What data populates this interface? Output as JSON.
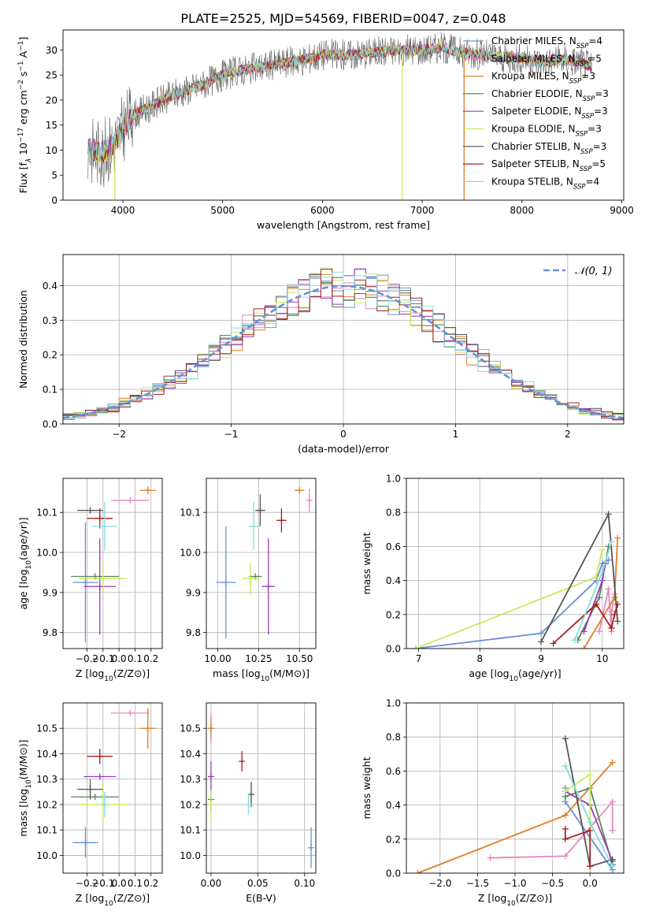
{
  "figure_title": "PLATE=2525, MJD=54569, FIBERID=0047, z=0.048",
  "colors": {
    "Chabrier MILES": "#6a8fd8",
    "Salpeter MILES": "#e388c0",
    "Kroupa MILES": "#e07f28",
    "Chabrier ELODIE": "#57845a",
    "Salpeter ELODIE": "#9a3ab4",
    "Kroupa ELODIE": "#c6ec58",
    "Chabrier STELIB": "#555555",
    "Salpeter STELIB": "#a81f1f",
    "Kroupa STELIB": "#86dcde",
    "normal_curve": "#6a8fd8"
  },
  "chart_data": [
    {
      "id": "spectrum",
      "type": "line",
      "title": "PLATE=2525, MJD=54569, FIBERID=0047, z=0.048",
      "xlabel": "wavelength [Angstrom, rest frame]",
      "ylabel": "Flux [f_λ 10^-17 erg cm^-2 s^-1 A^-1]",
      "xlim": [
        3400,
        9020
      ],
      "ylim": [
        0,
        34
      ],
      "xticks": [
        4000,
        5000,
        6000,
        7000,
        8000,
        9000
      ],
      "yticks": [
        0,
        5,
        10,
        15,
        20,
        25,
        30
      ],
      "grid": false,
      "legend_location": "top-right",
      "legend": [
        {
          "name": "Chabrier MILES",
          "nssp": "4"
        },
        {
          "name": "Salpeter MILES",
          "nssp": "5"
        },
        {
          "name": "Kroupa MILES",
          "nssp": "3"
        },
        {
          "name": "Chabrier ELODIE",
          "nssp": "3"
        },
        {
          "name": "Salpeter ELODIE",
          "nssp": "3"
        },
        {
          "name": "Kroupa ELODIE",
          "nssp": "3"
        },
        {
          "name": "Chabrier STELIB",
          "nssp": "3"
        },
        {
          "name": "Salpeter STELIB",
          "nssp": "5"
        },
        {
          "name": "Kroupa STELIB",
          "nssp": "4"
        }
      ],
      "continuum": {
        "x": [
          3650,
          3800,
          3900,
          4000,
          4100,
          4300,
          4500,
          4800,
          5000,
          5200,
          5500,
          5800,
          6000,
          6300,
          6500,
          6800,
          7000,
          7200,
          7400,
          7600,
          7800,
          8000,
          8200,
          8400,
          8600,
          8700
        ],
        "y": [
          10,
          9.5,
          11,
          14,
          17,
          19,
          21,
          23,
          25,
          26,
          27,
          28,
          29,
          29,
          29.5,
          30,
          30,
          30.5,
          29.5,
          29,
          28.5,
          28.5,
          27.5,
          28,
          27.5,
          26.5
        ]
      },
      "vertical_drops": [
        {
          "series": "Kroupa ELODIE",
          "x": 3920,
          "from": 11
        },
        {
          "series": "Kroupa ELODIE",
          "x": 6800,
          "from": 29
        },
        {
          "series": "Kroupa MILES",
          "x": 7420,
          "from": 28
        }
      ]
    },
    {
      "id": "residuals",
      "type": "histogram",
      "xlabel": "(data-model)/error",
      "ylabel": "Normed distribution",
      "xlim": [
        -2.5,
        2.5
      ],
      "ylim": [
        0,
        0.49
      ],
      "xticks": [
        -2,
        -1,
        0,
        1,
        2
      ],
      "yticks": [
        0.0,
        0.1,
        0.2,
        0.3,
        0.4
      ],
      "grid": true,
      "bin_width": 0.1,
      "legend_location": "top-right",
      "legend": [
        "𝒩(0, 1)"
      ],
      "series_jitter_seeds": [
        3,
        7,
        11,
        13,
        17,
        19,
        23,
        29,
        31
      ],
      "normal_mean": 0,
      "normal_std": 1
    },
    {
      "id": "age_vs_Z",
      "type": "errorbar",
      "xlabel": "Z [log10(Z/Z⊙)]",
      "ylabel": "age [log10(age/yr)]",
      "xlim": [
        -0.35,
        0.27
      ],
      "ylim": [
        9.76,
        10.185
      ],
      "xticks": [
        -0.2,
        -0.1,
        0.0,
        0.1,
        0.2
      ],
      "yticks": [
        9.8,
        9.9,
        10.0,
        10.1
      ],
      "grid": true,
      "points": [
        {
          "series": "Chabrier MILES",
          "x": -0.21,
          "xerr": 0.08,
          "y": 9.925,
          "yerr": 0.15
        },
        {
          "series": "Salpeter MILES",
          "x": 0.07,
          "xerr": 0.12,
          "y": 10.13,
          "yerr": 0.0
        },
        {
          "series": "Kroupa MILES",
          "x": 0.18,
          "xerr": 0.05,
          "y": 10.155,
          "yerr": 0.01
        },
        {
          "series": "Chabrier ELODIE",
          "x": -0.15,
          "xerr": 0.15,
          "y": 9.94,
          "yerr": 0.0
        },
        {
          "series": "Salpeter ELODIE",
          "x": -0.12,
          "xerr": 0.1,
          "y": 9.915,
          "yerr": 0.12
        },
        {
          "series": "Kroupa ELODIE",
          "x": -0.1,
          "xerr": 0.15,
          "y": 9.935,
          "yerr": 0.04
        },
        {
          "series": "Chabrier STELIB",
          "x": -0.18,
          "xerr": 0.08,
          "y": 10.105,
          "yerr": 0.0
        },
        {
          "series": "Salpeter STELIB",
          "x": -0.12,
          "xerr": 0.08,
          "y": 10.085,
          "yerr": 0.025
        },
        {
          "series": "Kroupa STELIB",
          "x": -0.09,
          "xerr": 0.08,
          "y": 10.065,
          "yerr": 0.06
        }
      ]
    },
    {
      "id": "age_vs_mass",
      "type": "errorbar",
      "xlabel": "mass [log10(M/M⊙)]",
      "ylabel": "",
      "xlim": [
        9.93,
        10.6
      ],
      "ylim": [
        9.76,
        10.185
      ],
      "xticks": [
        10.0,
        10.25,
        10.5
      ],
      "xticklabels": [
        "10.00",
        "10.25",
        "10.50"
      ],
      "yticks": [
        9.8,
        9.9,
        10.0,
        10.1
      ],
      "grid": true,
      "points": [
        {
          "series": "Chabrier MILES",
          "x": 10.05,
          "xerr": 0.06,
          "y": 9.925,
          "yerr": 0.14
        },
        {
          "series": "Salpeter MILES",
          "x": 10.56,
          "xerr": 0.0,
          "y": 10.13,
          "yerr": 0.03
        },
        {
          "series": "Kroupa MILES",
          "x": 10.5,
          "xerr": 0.03,
          "y": 10.155,
          "yerr": 0.0
        },
        {
          "series": "Chabrier ELODIE",
          "x": 10.23,
          "xerr": 0.04,
          "y": 9.94,
          "yerr": 0.0
        },
        {
          "series": "Salpeter ELODIE",
          "x": 10.31,
          "xerr": 0.04,
          "y": 9.915,
          "yerr": 0.12
        },
        {
          "series": "Kroupa ELODIE",
          "x": 10.2,
          "xerr": 0.05,
          "y": 9.935,
          "yerr": 0.04
        },
        {
          "series": "Chabrier STELIB",
          "x": 10.26,
          "xerr": 0.03,
          "y": 10.105,
          "yerr": 0.04
        },
        {
          "series": "Salpeter STELIB",
          "x": 10.39,
          "xerr": 0.03,
          "y": 10.08,
          "yerr": 0.03
        },
        {
          "series": "Kroupa STELIB",
          "x": 10.22,
          "xerr": 0.03,
          "y": 10.065,
          "yerr": 0.06
        }
      ]
    },
    {
      "id": "weight_vs_age",
      "type": "line",
      "xlabel": "age [log10(age/yr)]",
      "ylabel": "mass weight",
      "xlim": [
        6.8,
        10.35
      ],
      "ylim": [
        0,
        1.0
      ],
      "xticks": [
        7,
        8,
        9,
        10
      ],
      "yticks": [
        0.0,
        0.2,
        0.4,
        0.6,
        0.8,
        1.0
      ],
      "grid": true,
      "series": [
        {
          "name": "Chabrier MILES",
          "x": [
            6.95,
            9.0,
            9.9,
            10.0,
            10.1
          ],
          "y": [
            0.0,
            0.09,
            0.4,
            0.5,
            0.52
          ]
        },
        {
          "name": "Salpeter MILES",
          "x": [
            9.95,
            10.1,
            10.15,
            10.15,
            10.2
          ],
          "y": [
            0.1,
            0.35,
            0.1,
            0.22,
            0.32
          ]
        },
        {
          "name": "Kroupa MILES",
          "x": [
            9.7,
            10.2,
            10.25
          ],
          "y": [
            0.0,
            0.3,
            0.65
          ]
        },
        {
          "name": "Chabrier ELODIE",
          "x": [
            9.6,
            9.95,
            10.1
          ],
          "y": [
            0.05,
            0.3,
            0.6
          ]
        },
        {
          "name": "Salpeter ELODIE",
          "x": [
            9.7,
            10.0,
            10.05
          ],
          "y": [
            0.1,
            0.4,
            0.5
          ]
        },
        {
          "name": "Kroupa ELODIE",
          "x": [
            6.95,
            9.9,
            10.0
          ],
          "y": [
            0.0,
            0.42,
            0.58
          ]
        },
        {
          "name": "Chabrier STELIB",
          "x": [
            9.0,
            10.1,
            10.25
          ],
          "y": [
            0.04,
            0.79,
            0.16
          ]
        },
        {
          "name": "Salpeter STELIB",
          "x": [
            9.2,
            9.9,
            10.15,
            10.2,
            10.25
          ],
          "y": [
            0.03,
            0.26,
            0.12,
            0.2,
            0.26
          ]
        },
        {
          "name": "Kroupa STELIB",
          "x": [
            9.55,
            10.0,
            10.15
          ],
          "y": [
            0.05,
            0.45,
            0.63
          ]
        }
      ]
    },
    {
      "id": "mass_vs_Z",
      "type": "errorbar",
      "xlabel": "Z [log10(Z/Z⊙)]",
      "ylabel": "mass [log10(M/M⊙)]",
      "xlim": [
        -0.35,
        0.27
      ],
      "ylim": [
        9.93,
        10.6
      ],
      "xticks": [
        -0.2,
        -0.1,
        0.0,
        0.1,
        0.2
      ],
      "yticks": [
        10.0,
        10.1,
        10.2,
        10.3,
        10.4,
        10.5
      ],
      "grid": true,
      "points": [
        {
          "series": "Chabrier MILES",
          "x": -0.21,
          "xerr": 0.08,
          "y": 10.05,
          "yerr": 0.06
        },
        {
          "series": "Salpeter MILES",
          "x": 0.07,
          "xerr": 0.12,
          "y": 10.56,
          "yerr": 0.0
        },
        {
          "series": "Kroupa MILES",
          "x": 0.18,
          "xerr": 0.05,
          "y": 10.5,
          "yerr": 0.08
        },
        {
          "series": "Chabrier ELODIE",
          "x": -0.15,
          "xerr": 0.15,
          "y": 10.23,
          "yerr": 0.0
        },
        {
          "series": "Salpeter ELODIE",
          "x": -0.12,
          "xerr": 0.1,
          "y": 10.31,
          "yerr": 0.0
        },
        {
          "series": "Kroupa ELODIE",
          "x": -0.1,
          "xerr": 0.15,
          "y": 10.2,
          "yerr": 0.08
        },
        {
          "series": "Chabrier STELIB",
          "x": -0.18,
          "xerr": 0.08,
          "y": 10.26,
          "yerr": 0.04
        },
        {
          "series": "Salpeter STELIB",
          "x": -0.12,
          "xerr": 0.08,
          "y": 10.39,
          "yerr": 0.03
        },
        {
          "series": "Kroupa STELIB",
          "x": -0.09,
          "xerr": 0.0,
          "y": 10.2,
          "yerr": 0.05
        }
      ]
    },
    {
      "id": "mass_vs_ebv",
      "type": "errorbar",
      "xlabel": "E(B-V)",
      "ylabel": "",
      "xlim": [
        -0.005,
        0.112
      ],
      "ylim": [
        9.93,
        10.6
      ],
      "xticks": [
        0.0,
        0.05,
        0.1
      ],
      "xticklabels": [
        "0.00",
        "0.05",
        "0.10"
      ],
      "yticks": [
        10.0,
        10.1,
        10.2,
        10.3,
        10.4,
        10.5
      ],
      "grid": true,
      "points": [
        {
          "series": "Chabrier MILES",
          "x": 0.107,
          "xerr": 0.0,
          "y": 10.03,
          "yerr": 0.08
        },
        {
          "series": "Salpeter MILES",
          "x": 0.0,
          "xerr": 0.0,
          "y": 10.5,
          "yerr": 0.06
        },
        {
          "series": "Kroupa MILES",
          "x": 0.0,
          "xerr": 0.0,
          "y": 10.5,
          "yerr": 0.04
        },
        {
          "series": "Chabrier ELODIE",
          "x": 0.0,
          "xerr": 0.0,
          "y": 10.22,
          "yerr": 0.05
        },
        {
          "series": "Salpeter ELODIE",
          "x": 0.0,
          "xerr": 0.0,
          "y": 10.31,
          "yerr": 0.06
        },
        {
          "series": "Kroupa ELODIE",
          "x": 0.0,
          "xerr": 0.0,
          "y": 10.2,
          "yerr": 0.06
        },
        {
          "series": "Chabrier STELIB",
          "x": 0.043,
          "xerr": 0.0,
          "y": 10.24,
          "yerr": 0.05
        },
        {
          "series": "Salpeter STELIB",
          "x": 0.033,
          "xerr": 0.0,
          "y": 10.37,
          "yerr": 0.04
        },
        {
          "series": "Kroupa STELIB",
          "x": 0.04,
          "xerr": 0.0,
          "y": 10.2,
          "yerr": 0.04
        }
      ]
    },
    {
      "id": "weight_vs_Z",
      "type": "line",
      "xlabel": "Z [log10(Z/Z⊙)]",
      "ylabel": "mass weight",
      "xlim": [
        -2.45,
        0.45
      ],
      "ylim": [
        0,
        1.0
      ],
      "xticks": [
        -2.0,
        -1.5,
        -1.0,
        -0.5,
        0.0
      ],
      "yticks": [
        0.0,
        0.2,
        0.4,
        0.6,
        0.8,
        1.0
      ],
      "grid": true,
      "series": [
        {
          "name": "Chabrier MILES",
          "x": [
            -0.33,
            -0.33,
            0.3,
            0.3
          ],
          "y": [
            0.5,
            0.42,
            0.02,
            0.08
          ]
        },
        {
          "name": "Salpeter MILES",
          "x": [
            -1.33,
            -0.33,
            0.3,
            0.3
          ],
          "y": [
            0.09,
            0.1,
            0.42,
            0.25
          ]
        },
        {
          "name": "Kroupa MILES",
          "x": [
            -2.3,
            -0.33,
            0.3
          ],
          "y": [
            0.0,
            0.34,
            0.65
          ]
        },
        {
          "name": "Chabrier ELODIE",
          "x": [
            -0.33,
            0.0,
            0.3
          ],
          "y": [
            0.45,
            0.5,
            0.05
          ]
        },
        {
          "name": "Salpeter ELODIE",
          "x": [
            -0.33,
            0.0,
            0.3
          ],
          "y": [
            0.48,
            0.4,
            0.07
          ]
        },
        {
          "name": "Kroupa ELODIE",
          "x": [
            -0.33,
            0.0,
            0.0
          ],
          "y": [
            0.48,
            0.58,
            0.2
          ]
        },
        {
          "name": "Chabrier STELIB",
          "x": [
            -0.33,
            0.0,
            0.3
          ],
          "y": [
            0.79,
            0.04,
            0.08
          ]
        },
        {
          "name": "Salpeter STELIB",
          "x": [
            -0.33,
            -0.33,
            0.0,
            0.0
          ],
          "y": [
            0.26,
            0.2,
            0.25,
            0.04
          ]
        },
        {
          "name": "Kroupa STELIB",
          "x": [
            -0.33,
            0.0,
            0.3
          ],
          "y": [
            0.63,
            0.3,
            0.04
          ]
        }
      ]
    }
  ]
}
